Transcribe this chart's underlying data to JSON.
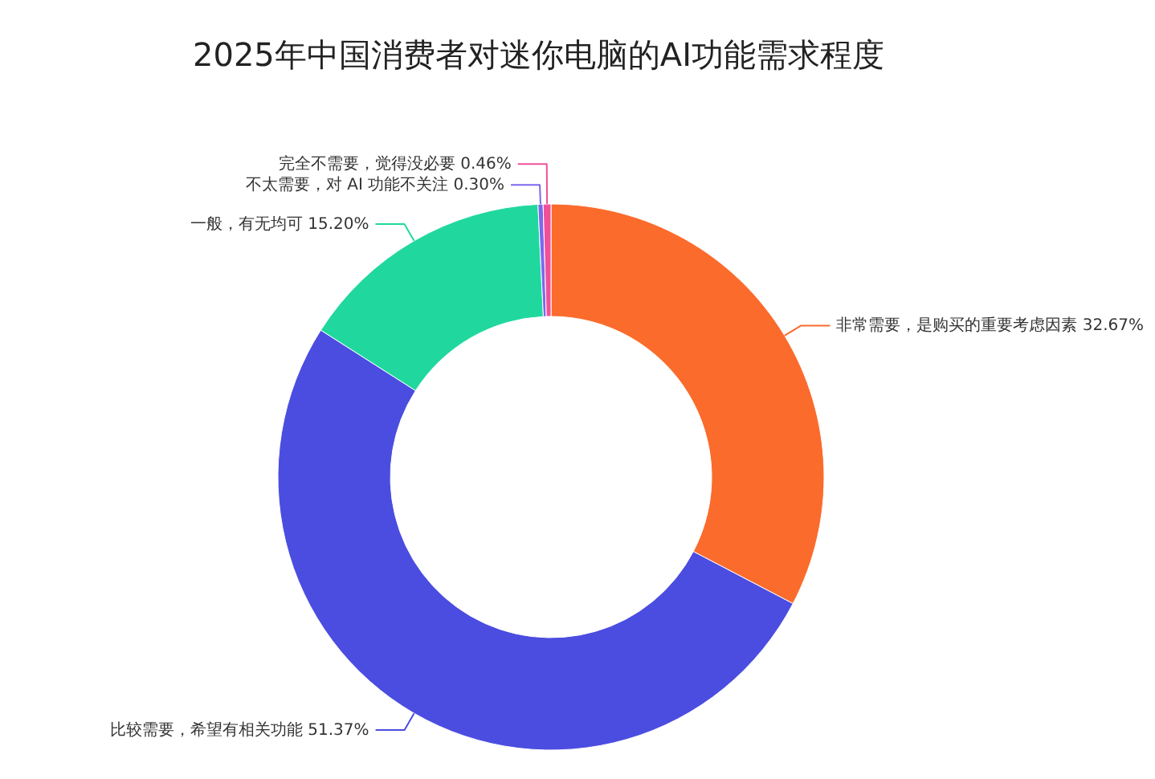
{
  "chart_data": {
    "type": "donut",
    "title": "2025年中国消费者对迷你电脑的AI功能需求程度",
    "categories": [
      "非常需要，是购买的重要考虑因素",
      "比较需要，希望有相关功能",
      "一般，有无均可",
      "不太需要，对 AI 功能不关注",
      "完全不需要，觉得没必要"
    ],
    "values": [
      32.67,
      51.37,
      15.2,
      0.3,
      0.46
    ],
    "value_labels": [
      "32.67%",
      "51.37%",
      "15.20%",
      "0.30%",
      "0.46%"
    ],
    "colors": [
      "#fb6b2c",
      "#4b4de0",
      "#20d89e",
      "#7b68ee",
      "#f0509a"
    ],
    "legend": false
  }
}
